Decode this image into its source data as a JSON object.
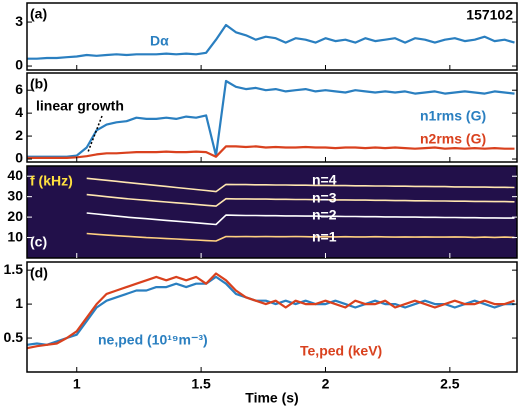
{
  "chart_data": [
    {
      "type": "line",
      "panel_label": "(a)",
      "annotation": "157102",
      "xlim": [
        0.8,
        2.77
      ],
      "x": [
        0.8,
        0.84,
        0.88,
        0.92,
        0.96,
        1.0,
        1.04,
        1.08,
        1.12,
        1.16,
        1.2,
        1.24,
        1.28,
        1.32,
        1.36,
        1.4,
        1.44,
        1.48,
        1.52,
        1.56,
        1.6,
        1.64,
        1.68,
        1.72,
        1.76,
        1.8,
        1.84,
        1.88,
        1.92,
        1.96,
        2.0,
        2.04,
        2.08,
        2.12,
        2.16,
        2.2,
        2.24,
        2.28,
        2.32,
        2.36,
        2.4,
        2.44,
        2.48,
        2.52,
        2.56,
        2.6,
        2.64,
        2.68,
        2.72,
        2.76
      ],
      "ylim": [
        -0.27,
        4.3
      ],
      "yticks": [
        0,
        3
      ],
      "series": [
        {
          "name": "Dα",
          "color": "#2a7fc0",
          "values": [
            0.5,
            0.5,
            0.55,
            0.55,
            0.6,
            0.65,
            0.75,
            0.7,
            0.75,
            0.8,
            0.75,
            0.8,
            0.8,
            0.8,
            0.85,
            0.8,
            0.85,
            0.8,
            0.9,
            1.8,
            2.8,
            2.3,
            2.1,
            1.8,
            2.0,
            1.9,
            1.6,
            1.9,
            1.8,
            1.6,
            1.9,
            1.7,
            1.8,
            1.6,
            1.9,
            1.7,
            1.8,
            1.9,
            1.6,
            1.9,
            1.8,
            1.6,
            1.8,
            1.9,
            1.7,
            1.8,
            2.0,
            1.7,
            1.8,
            1.6
          ]
        }
      ]
    },
    {
      "type": "line",
      "panel_label": "(b)",
      "annotation": "linear growth",
      "xlim": [
        0.8,
        2.77
      ],
      "x": [
        0.8,
        0.84,
        0.88,
        0.92,
        0.96,
        1.0,
        1.04,
        1.08,
        1.12,
        1.16,
        1.2,
        1.24,
        1.28,
        1.32,
        1.36,
        1.4,
        1.44,
        1.48,
        1.52,
        1.56,
        1.6,
        1.64,
        1.68,
        1.72,
        1.76,
        1.8,
        1.84,
        1.88,
        1.92,
        1.96,
        2.0,
        2.04,
        2.08,
        2.12,
        2.16,
        2.2,
        2.24,
        2.28,
        2.32,
        2.36,
        2.4,
        2.44,
        2.48,
        2.52,
        2.56,
        2.6,
        2.64,
        2.68,
        2.72,
        2.76
      ],
      "ylim": [
        -0.26,
        7.5
      ],
      "yticks": [
        0,
        2,
        4,
        6
      ],
      "series": [
        {
          "name": "n1rms (G)",
          "color": "#2a7fc0",
          "values": [
            0.2,
            0.2,
            0.2,
            0.2,
            0.2,
            0.3,
            1.0,
            2.5,
            3.0,
            3.2,
            3.3,
            3.6,
            3.5,
            3.5,
            3.6,
            3.5,
            3.7,
            3.6,
            3.8,
            0.3,
            6.8,
            6.3,
            6.1,
            6.2,
            6.0,
            6.1,
            5.9,
            6.0,
            6.1,
            5.9,
            6.0,
            5.9,
            5.8,
            6.0,
            5.9,
            5.8,
            5.9,
            5.8,
            5.9,
            5.7,
            5.8,
            5.9,
            5.7,
            5.8,
            5.9,
            5.8,
            5.7,
            5.9,
            5.8,
            5.7
          ]
        },
        {
          "name": "n2rms (G)",
          "color": "#d9411e",
          "values": [
            0.1,
            0.1,
            0.1,
            0.1,
            0.1,
            0.15,
            0.25,
            0.4,
            0.5,
            0.5,
            0.55,
            0.6,
            0.6,
            0.6,
            0.65,
            0.6,
            0.6,
            0.65,
            0.6,
            0.2,
            1.1,
            1.1,
            1.05,
            1.1,
            1.0,
            1.05,
            1.0,
            1.0,
            1.05,
            1.0,
            1.0,
            0.95,
            1.0,
            1.0,
            0.95,
            1.0,
            0.95,
            1.0,
            0.95,
            0.9,
            0.95,
            1.0,
            0.9,
            0.95,
            0.9,
            0.95,
            0.9,
            0.95,
            0.9,
            0.9
          ]
        }
      ]
    },
    {
      "type": "line",
      "panel_label": "(c)",
      "ylabel": "f (kHz)",
      "background": "#22104a",
      "xlim": [
        0.8,
        2.77
      ],
      "x": [
        0.8,
        0.84,
        0.88,
        0.92,
        0.96,
        1.0,
        1.04,
        1.08,
        1.12,
        1.16,
        1.2,
        1.24,
        1.28,
        1.32,
        1.36,
        1.4,
        1.44,
        1.48,
        1.52,
        1.56,
        1.6,
        1.64,
        1.68,
        1.72,
        1.76,
        1.8,
        1.84,
        1.88,
        1.92,
        1.96,
        2.0,
        2.04,
        2.08,
        2.12,
        2.16,
        2.2,
        2.24,
        2.28,
        2.32,
        2.36,
        2.4,
        2.44,
        2.48,
        2.52,
        2.56,
        2.6,
        2.64,
        2.68,
        2.72,
        2.76
      ],
      "ylim": [
        0,
        45
      ],
      "yticks": [
        10,
        20,
        30,
        40
      ],
      "series": [
        {
          "name": "n=4",
          "color": "#ffe6b0",
          "values": [
            null,
            null,
            null,
            null,
            null,
            null,
            39,
            38.5,
            38,
            37.5,
            37,
            36.5,
            36,
            35.5,
            35,
            34.5,
            34,
            33.5,
            33,
            32.5,
            36,
            35.9,
            35.9,
            35.8,
            35.8,
            35.7,
            35.7,
            35.6,
            35.6,
            35.5,
            35.5,
            35.4,
            35.4,
            35.3,
            35.3,
            35.2,
            35.2,
            35.1,
            35.1,
            35.0,
            35.0,
            34.9,
            34.9,
            34.8,
            34.8,
            34.7,
            34.7,
            34.6,
            34.6,
            34.5
          ]
        },
        {
          "name": "n=3",
          "color": "#ffe6b0",
          "values": [
            null,
            null,
            null,
            null,
            null,
            null,
            31,
            30.5,
            30,
            29.5,
            29,
            28.6,
            28.2,
            27.8,
            27.4,
            27,
            26.6,
            26.2,
            25.8,
            25.4,
            29,
            28.9,
            28.9,
            28.8,
            28.8,
            28.7,
            28.7,
            28.6,
            28.6,
            28.5,
            28.5,
            28.4,
            28.4,
            28.3,
            28.3,
            28.2,
            28.2,
            28.1,
            28.1,
            28.0,
            28.0,
            27.9,
            27.9,
            27.8,
            27.8,
            27.7,
            27.7,
            27.6,
            27.6,
            27.5
          ]
        },
        {
          "name": "n=2",
          "color": "#ffffff",
          "values": [
            null,
            null,
            null,
            null,
            null,
            null,
            22,
            21.5,
            21,
            20.5,
            20,
            19.6,
            19.2,
            18.8,
            18.4,
            18,
            17.6,
            17.2,
            16.8,
            16.4,
            21,
            20.9,
            20.8,
            20.8,
            20.7,
            20.7,
            20.6,
            20.6,
            20.5,
            20.5,
            20.4,
            20.4,
            20.3,
            20.3,
            20.2,
            20.2,
            20.1,
            20.1,
            20.0,
            20.0,
            19.9,
            19.9,
            19.8,
            19.8,
            19.7,
            19.7,
            19.6,
            19.6,
            19.5,
            19.5
          ]
        },
        {
          "name": "n=1",
          "color": "#ffd080",
          "values": [
            null,
            null,
            null,
            null,
            null,
            null,
            12,
            11.6,
            11.2,
            10.9,
            10.6,
            10.3,
            10.0,
            9.8,
            9.5,
            9.3,
            9.0,
            8.8,
            8.5,
            8.3,
            10.5,
            10.4,
            10.5,
            10.4,
            10.5,
            10.4,
            10.4,
            10.5,
            10.4,
            10.3,
            10.4,
            10.3,
            10.4,
            10.3,
            10.3,
            10.4,
            10.3,
            10.2,
            10.3,
            10.2,
            10.3,
            10.2,
            10.2,
            10.3,
            10.2,
            10.1,
            10.2,
            10.1,
            10.2,
            10.1
          ]
        }
      ]
    },
    {
      "type": "line",
      "panel_label": "(d)",
      "xlabel": "Time (s)",
      "xlim": [
        0.8,
        2.77
      ],
      "xticks": [
        1,
        1.5,
        2,
        2.5
      ],
      "x": [
        0.8,
        0.84,
        0.88,
        0.92,
        0.96,
        1.0,
        1.04,
        1.08,
        1.12,
        1.16,
        1.2,
        1.24,
        1.28,
        1.32,
        1.36,
        1.4,
        1.44,
        1.48,
        1.52,
        1.56,
        1.6,
        1.64,
        1.68,
        1.72,
        1.76,
        1.8,
        1.84,
        1.88,
        1.92,
        1.96,
        2.0,
        2.04,
        2.08,
        2.12,
        2.16,
        2.2,
        2.24,
        2.28,
        2.32,
        2.36,
        2.4,
        2.44,
        2.48,
        2.52,
        2.56,
        2.6,
        2.64,
        2.68,
        2.72,
        2.76
      ],
      "ylim": [
        0,
        1.62
      ],
      "yticks": [
        0.5,
        1,
        1.5
      ],
      "series": [
        {
          "name": "ne,ped (10¹⁹m⁻³)",
          "color": "#2a7fc0",
          "values": [
            0.4,
            0.42,
            0.4,
            0.45,
            0.5,
            0.55,
            0.75,
            0.95,
            1.05,
            1.1,
            1.15,
            1.2,
            1.2,
            1.25,
            1.25,
            1.3,
            1.25,
            1.3,
            1.3,
            1.4,
            1.3,
            1.15,
            1.1,
            1.05,
            1.05,
            1.0,
            1.05,
            1.0,
            1.05,
            1.0,
            1.0,
            1.05,
            1.0,
            0.95,
            1.0,
            1.05,
            1.0,
            1.0,
            0.95,
            1.0,
            1.05,
            1.0,
            1.0,
            0.95,
            1.0,
            1.05,
            1.0,
            0.95,
            1.0,
            1.0
          ]
        },
        {
          "name": "Te,ped (keV)",
          "color": "#d9411e",
          "values": [
            0.35,
            0.38,
            0.4,
            0.42,
            0.5,
            0.6,
            0.8,
            1.0,
            1.15,
            1.2,
            1.25,
            1.3,
            1.35,
            1.4,
            1.35,
            1.4,
            1.35,
            1.4,
            1.3,
            1.45,
            1.35,
            1.2,
            1.1,
            1.05,
            1.0,
            1.05,
            0.95,
            1.05,
            1.0,
            1.0,
            1.05,
            1.0,
            0.95,
            1.05,
            1.0,
            1.0,
            1.05,
            0.95,
            1.0,
            1.05,
            1.0,
            0.95,
            1.0,
            1.05,
            1.0,
            1.0,
            1.05,
            1.0,
            1.0,
            1.05
          ]
        }
      ]
    }
  ]
}
